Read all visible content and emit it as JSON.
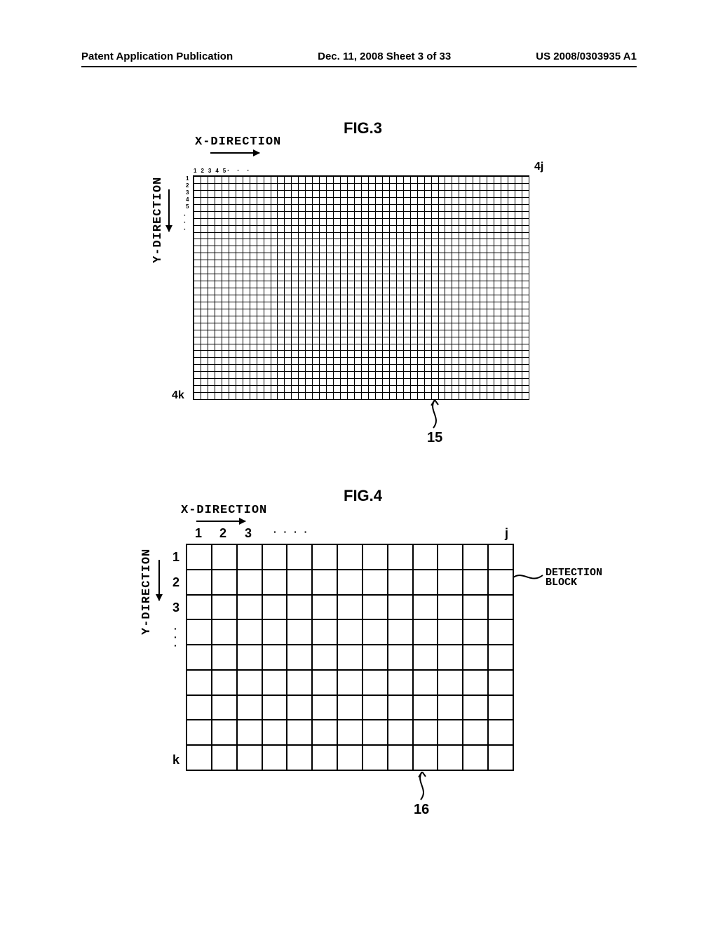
{
  "header": {
    "left": "Patent Application Publication",
    "center": "Dec. 11, 2008  Sheet 3 of 33",
    "right": "US 2008/0303935 A1"
  },
  "fig3": {
    "title": "FIG.3",
    "x_direction_label": "X-DIRECTION",
    "y_direction_label": "Y-DIRECTION",
    "cols": 48,
    "rows": 32,
    "x_nums_text": "12345",
    "x_dots_text": "· · ·",
    "y_nums": [
      "1",
      "2",
      "3",
      "4",
      "5"
    ],
    "y_dots_lines": [
      "·",
      "·",
      "·"
    ],
    "top_right_ref": "4j",
    "bottom_left_ref": "4k",
    "pointer_ref": "15",
    "grid_color": "#000000",
    "background": "#ffffff"
  },
  "fig4": {
    "title": "FIG.4",
    "x_direction_label": "X-DIRECTION",
    "y_direction_label": "Y-DIRECTION",
    "cols": 13,
    "rows": 9,
    "x_nums": [
      "1",
      "2",
      "3"
    ],
    "x_dots_text": "· · · ·",
    "x_right_label": "j",
    "y_nums": [
      "1",
      "2",
      "3"
    ],
    "y_dots_lines": [
      "·",
      "·",
      "·"
    ],
    "y_bottom_label": "k",
    "pointer_ref": "16",
    "detection_block_label": "DETECTION\nBLOCK",
    "grid_color": "#000000",
    "background": "#ffffff"
  }
}
